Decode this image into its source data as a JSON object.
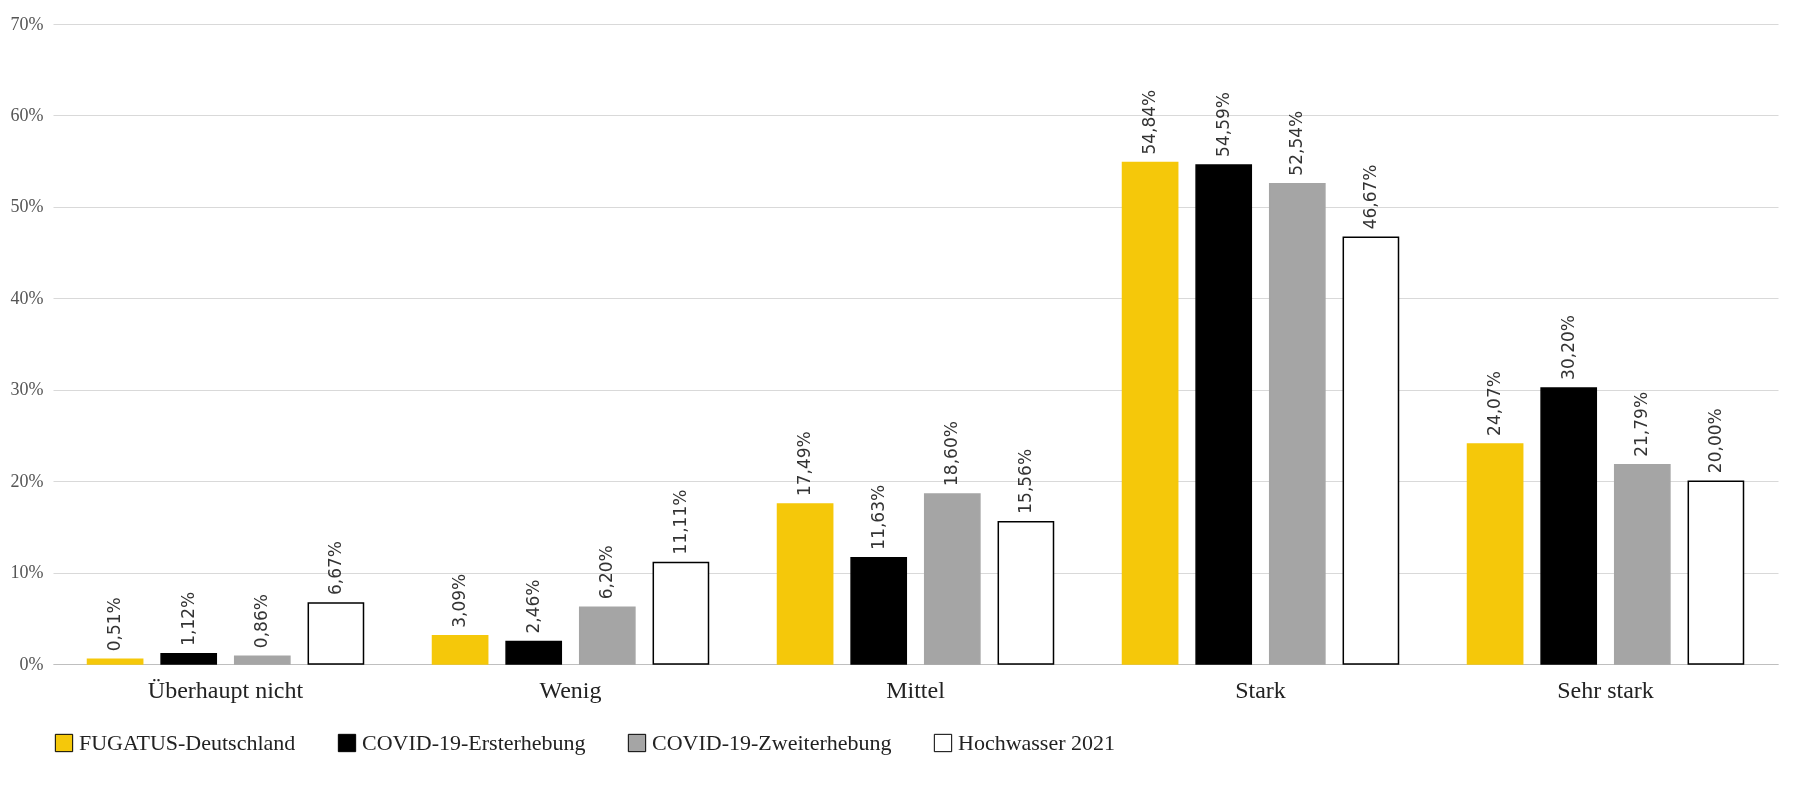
{
  "chart_data": {
    "type": "bar",
    "categories": [
      "Überhaupt nicht",
      "Wenig",
      "Mittel",
      "Stark",
      "Sehr stark"
    ],
    "series": [
      {
        "name": "FUGATUS-Deutschland",
        "color": "#f5c80a",
        "values": [
          0.51,
          3.09,
          17.49,
          54.84,
          24.07
        ],
        "value_labels": [
          "0,51%",
          "3,09%",
          "17,49%",
          "54,84%",
          "24,07%"
        ]
      },
      {
        "name": "COVID-19-Ersterhebung",
        "color": "#000000",
        "values": [
          1.12,
          2.46,
          11.63,
          54.59,
          30.2
        ],
        "value_labels": [
          "1,12%",
          "2,46%",
          "11,63%",
          "54,59%",
          "30,20%"
        ]
      },
      {
        "name": "COVID-19-Zweiterhebung",
        "color": "#a5a5a5",
        "values": [
          0.86,
          6.2,
          18.6,
          52.54,
          21.79
        ],
        "value_labels": [
          "0,86%",
          "6,20%",
          "18,60%",
          "52,54%",
          "21,79%"
        ]
      },
      {
        "name": "Hochwasser 2021",
        "color": "#ffffff",
        "values": [
          6.67,
          11.11,
          15.56,
          46.67,
          20.0
        ],
        "value_labels": [
          "6,67%",
          "11,11%",
          "15,56%",
          "46,67%",
          "20,00%"
        ]
      }
    ],
    "ylim": [
      0,
      70
    ],
    "yticks": [
      {
        "value": 0,
        "label": "0%"
      },
      {
        "value": 10,
        "label": "10%"
      },
      {
        "value": 20,
        "label": "20%"
      },
      {
        "value": 30,
        "label": "30%"
      },
      {
        "value": 40,
        "label": "40%"
      },
      {
        "value": 50,
        "label": "50%"
      },
      {
        "value": 60,
        "label": "60%"
      },
      {
        "value": 70,
        "label": "70%"
      }
    ],
    "grid": "y",
    "legend": "bottom"
  }
}
